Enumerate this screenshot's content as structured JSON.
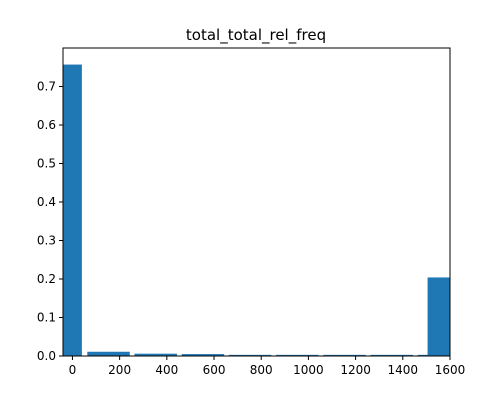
{
  "chart_data": {
    "type": "bar",
    "title": "total_total_rel_freq",
    "xlabel": "",
    "ylabel": "",
    "xlim": [
      -40,
      1600
    ],
    "ylim": [
      0,
      0.8
    ],
    "x_ticks": [
      0,
      200,
      400,
      600,
      800,
      1000,
      1200,
      1400,
      1600
    ],
    "y_ticks": [
      0.0,
      0.1,
      0.2,
      0.3,
      0.4,
      0.5,
      0.6,
      0.7
    ],
    "bar_color": "#1f77b4",
    "grid": false,
    "bars": [
      {
        "x_start": -40,
        "x_end": 40,
        "value": 0.757
      },
      {
        "x_start": 63,
        "x_end": 243,
        "value": 0.011
      },
      {
        "x_start": 263,
        "x_end": 443,
        "value": 0.006
      },
      {
        "x_start": 463,
        "x_end": 643,
        "value": 0.005
      },
      {
        "x_start": 663,
        "x_end": 843,
        "value": 0.003
      },
      {
        "x_start": 863,
        "x_end": 1043,
        "value": 0.003
      },
      {
        "x_start": 1063,
        "x_end": 1243,
        "value": 0.003
      },
      {
        "x_start": 1263,
        "x_end": 1443,
        "value": 0.003
      },
      {
        "x_start": 1463,
        "x_end": 1643,
        "value": 0.003
      },
      {
        "x_start": 1505,
        "x_end": 1600,
        "value": 0.204
      }
    ]
  }
}
